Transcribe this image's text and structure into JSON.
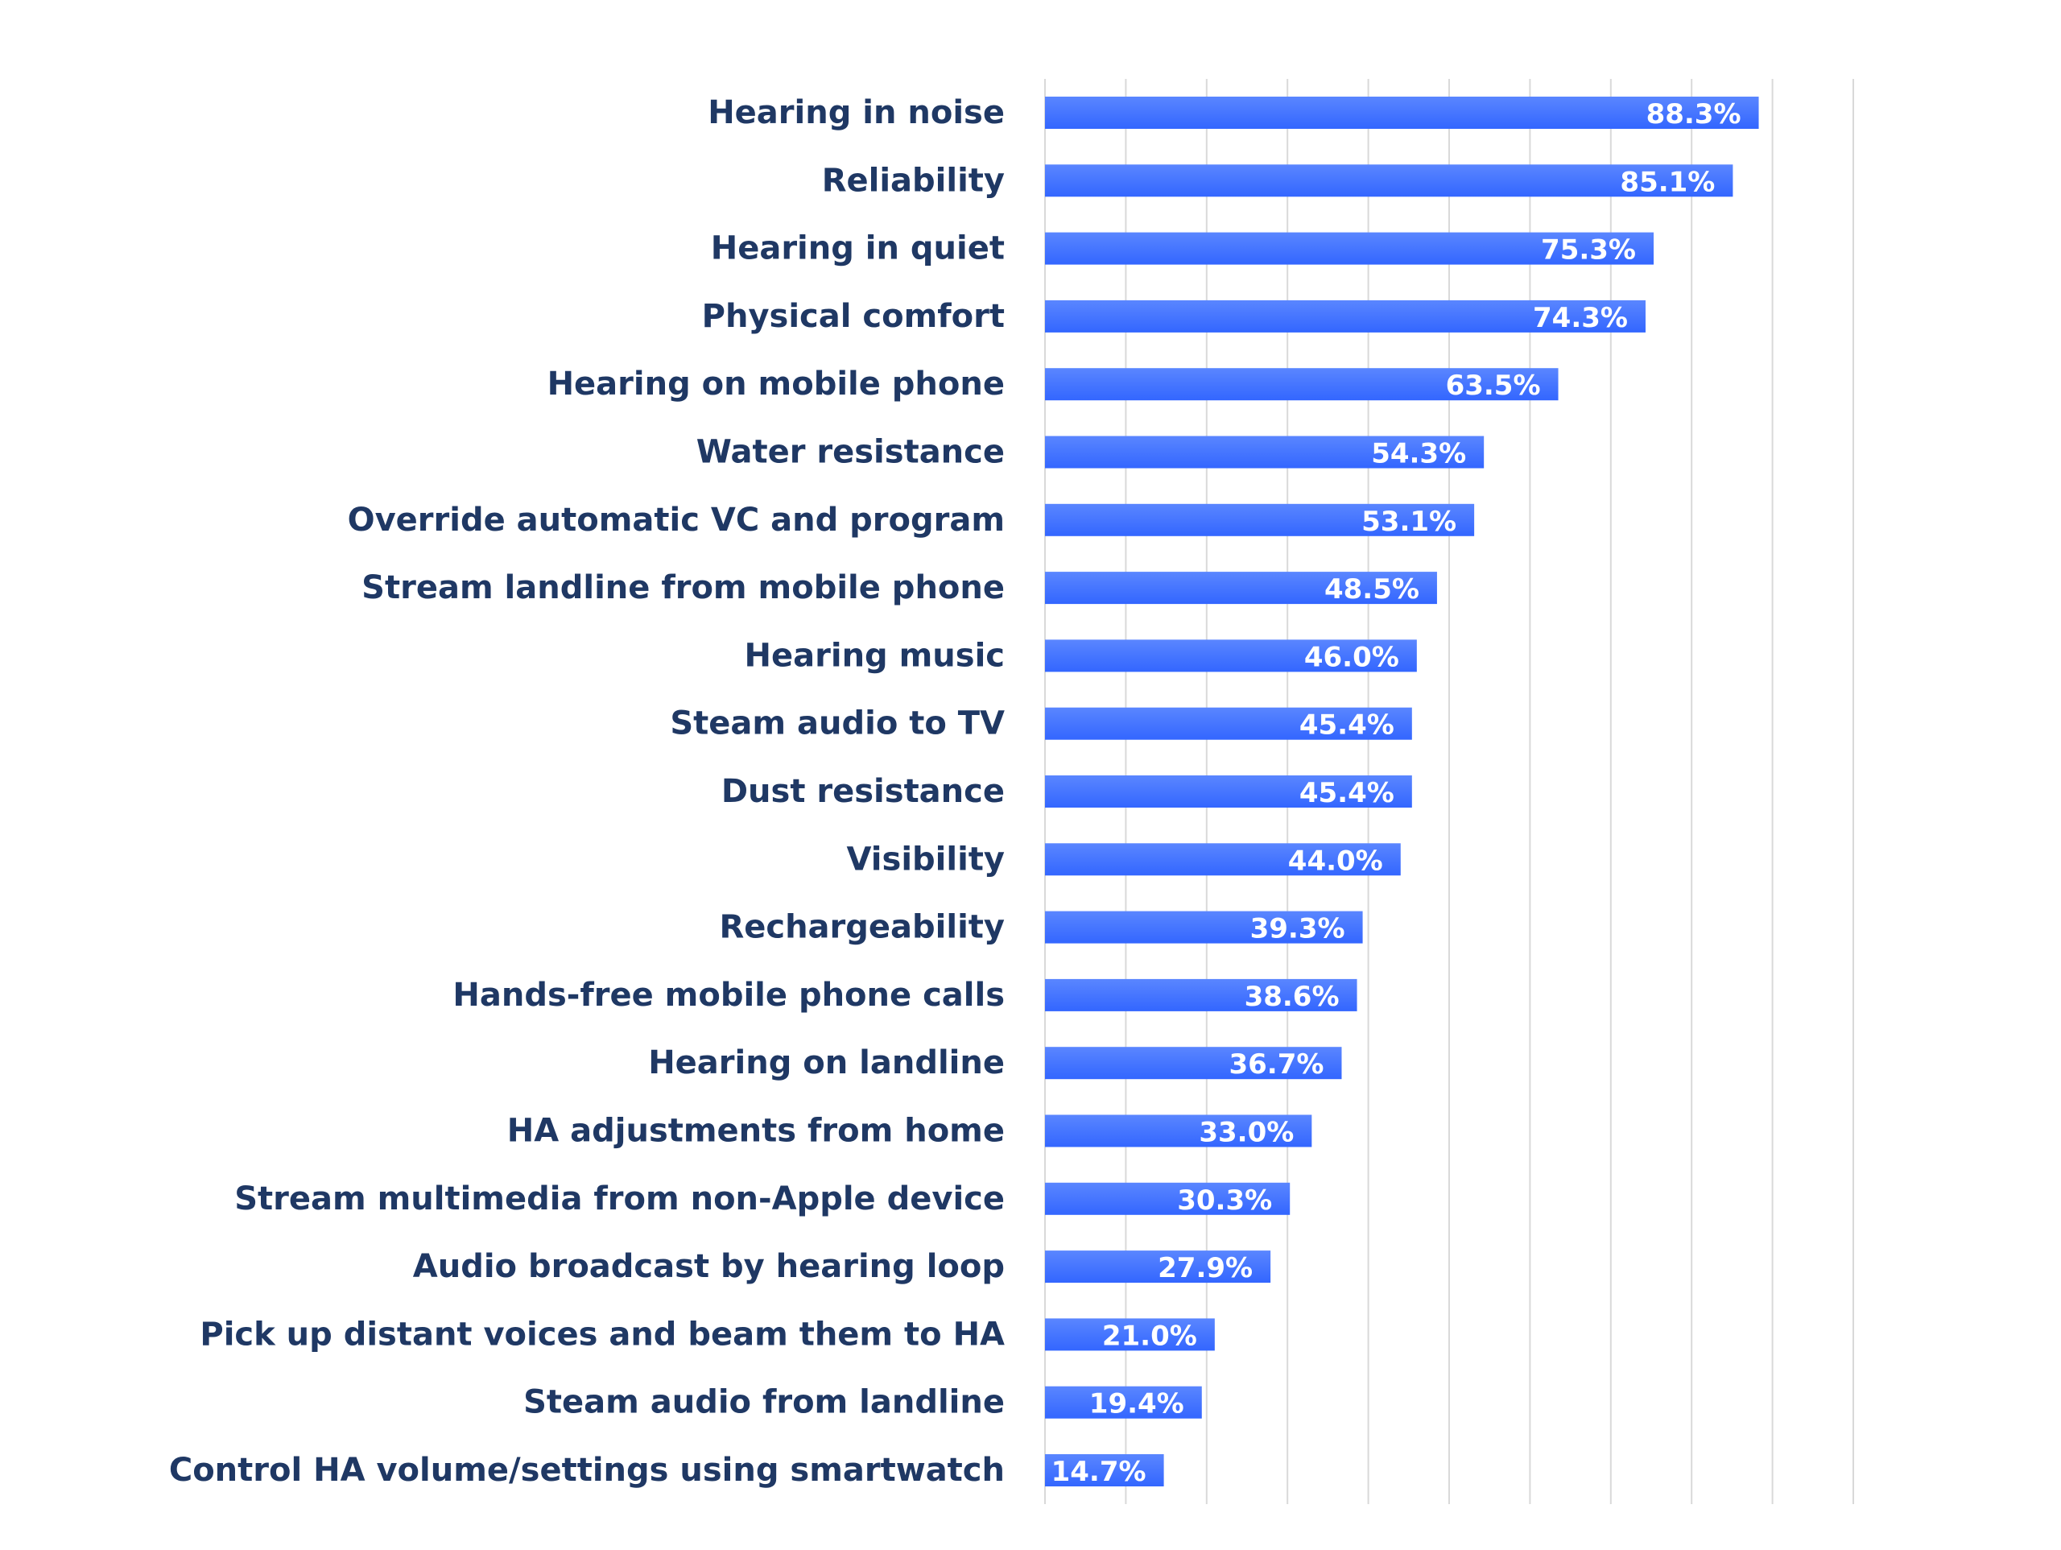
{
  "chart_data": {
    "type": "bar",
    "orientation": "horizontal",
    "title": "",
    "xlabel": "",
    "ylabel": "",
    "categories": [
      "Hearing in noise",
      "Reliability",
      "Hearing in quiet",
      "Physical comfort",
      "Hearing on mobile phone",
      "Water resistance",
      "Override automatic VC and program",
      "Stream landline from mobile phone",
      "Hearing music",
      "Steam audio to TV",
      "Dust resistance",
      "Visibility",
      "Rechargeability",
      "Hands-free mobile phone calls",
      "Hearing on landline",
      "HA adjustments from home",
      "Stream multimedia from non-Apple device",
      "Audio broadcast by hearing loop",
      "Pick up distant voices and beam them to HA",
      "Steam audio from landline",
      "Control HA volume/settings using smartwatch"
    ],
    "values": [
      88.3,
      85.1,
      75.3,
      74.3,
      63.5,
      54.3,
      53.1,
      48.5,
      46.0,
      45.4,
      45.4,
      44.0,
      39.3,
      38.6,
      36.7,
      33.0,
      30.3,
      27.9,
      21.0,
      19.4,
      14.7
    ],
    "value_labels": [
      "88.3%",
      "85.1%",
      "75.3%",
      "74.3%",
      "63.5%",
      "54.3%",
      "53.1%",
      "48.5%",
      "46.0%",
      "45.4%",
      "45.4%",
      "44.0%",
      "39.3%",
      "38.6%",
      "36.7%",
      "33.0%",
      "30.3%",
      "27.9%",
      "21.0%",
      "19.4%",
      "14.7%"
    ],
    "xlim": [
      0,
      100
    ],
    "grid": true,
    "legend": "none",
    "bar_color": "#3366ff",
    "bar_color_light": "#5a86ff",
    "label_color": "#1f3864",
    "gridline_color": "#d9d9d9"
  }
}
